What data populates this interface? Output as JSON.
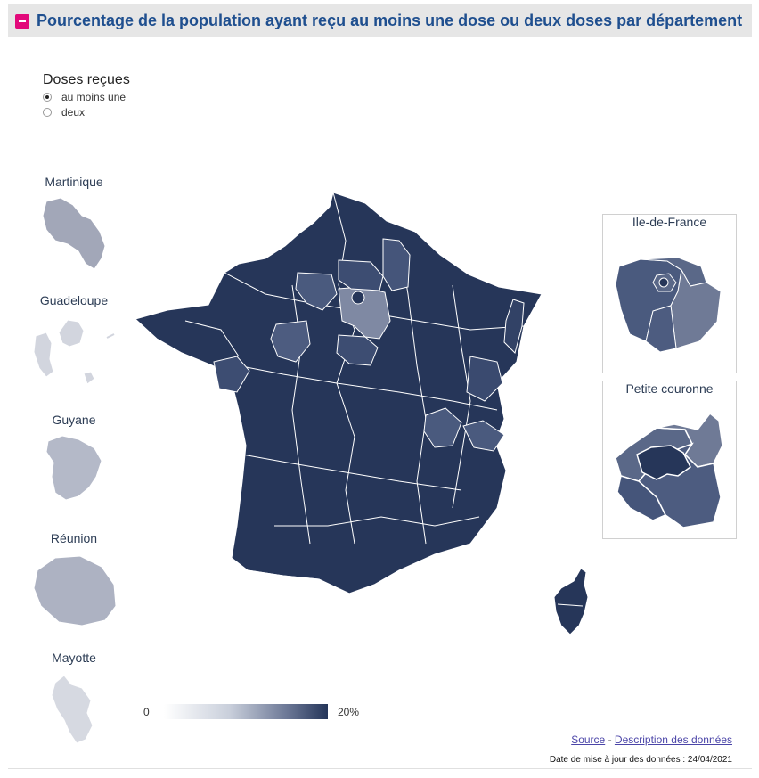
{
  "header": {
    "title": "Pourcentage de la population ayant reçu au moins une dose ou deux doses par département",
    "collapse_icon": "minus-icon",
    "accent_color": "#e2097a"
  },
  "doses": {
    "title": "Doses reçues",
    "options": [
      {
        "label": "au moins une",
        "selected": true
      },
      {
        "label": "deux",
        "selected": false
      }
    ]
  },
  "overseas": [
    {
      "label": "Martinique"
    },
    {
      "label": "Guadeloupe"
    },
    {
      "label": "Guyane"
    },
    {
      "label": "Réunion"
    },
    {
      "label": "Mayotte"
    }
  ],
  "insets": {
    "idf": {
      "label": "Ile-de-France"
    },
    "petite_couronne": {
      "label": "Petite couronne"
    }
  },
  "legend": {
    "min": "0",
    "max": "20%",
    "color_low": "#ffffff",
    "color_high": "#243559"
  },
  "footer": {
    "source": "Source",
    "separator": "-",
    "description": "Description des données",
    "date": "Date de mise à jour des données : 24/04/2021"
  }
}
